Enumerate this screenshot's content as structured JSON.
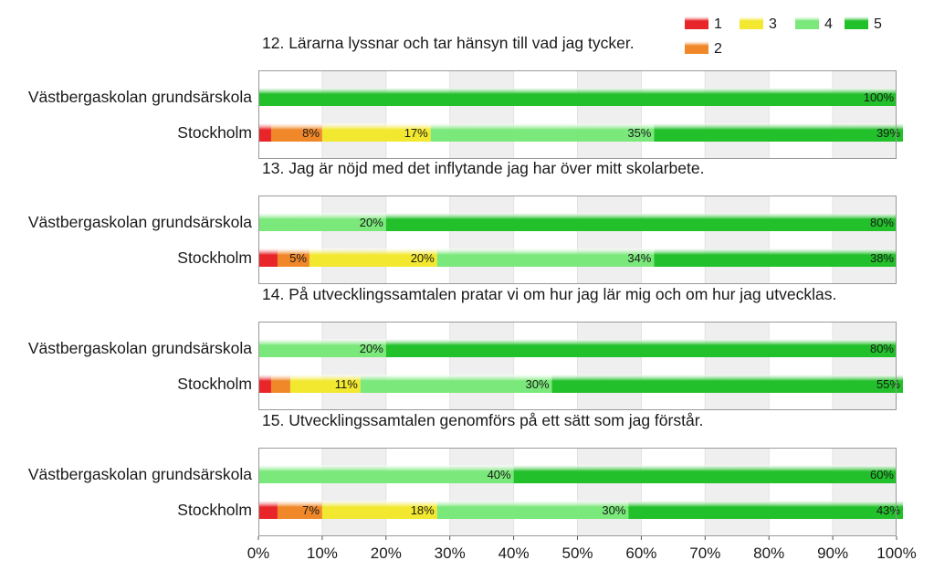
{
  "chart_data": {
    "type": "bar",
    "stacked": true,
    "orientation": "horizontal",
    "xlim": [
      0,
      100
    ],
    "x_ticks": [
      "0%",
      "10%",
      "20%",
      "30%",
      "40%",
      "50%",
      "60%",
      "70%",
      "80%",
      "90%",
      "100%"
    ],
    "legend": {
      "placement": "top-right",
      "entries": [
        "1",
        "2",
        "3",
        "4",
        "5"
      ]
    },
    "colors": {
      "1": "#e8262a",
      "2": "#f0882a",
      "3": "#f2e830",
      "4": "#7ae87a",
      "5": "#22c02a"
    },
    "panels": [
      {
        "title": "12. Lärarna lyssnar och tar hänsyn till vad jag tycker.",
        "rows": [
          {
            "category": "Västbergaskolan grundsärskola",
            "values": [
              0,
              0,
              0,
              0,
              100
            ],
            "labels": [
              "",
              "",
              "",
              "",
              "100%"
            ]
          },
          {
            "category": "Stockholm",
            "values": [
              2,
              8,
              17,
              35,
              39
            ],
            "labels": [
              "",
              "8%",
              "17%",
              "35%",
              "39%"
            ]
          }
        ]
      },
      {
        "title": "13. Jag är nöjd med det inflytande jag har över mitt skolarbete.",
        "rows": [
          {
            "category": "Västbergaskolan grundsärskola",
            "values": [
              0,
              0,
              0,
              20,
              80
            ],
            "labels": [
              "",
              "",
              "",
              "20%",
              "80%"
            ]
          },
          {
            "category": "Stockholm",
            "values": [
              3,
              5,
              20,
              34,
              38
            ],
            "labels": [
              "",
              "5%",
              "20%",
              "34%",
              "38%"
            ]
          }
        ]
      },
      {
        "title": "14. På utvecklingssamtalen pratar vi om hur jag lär mig och om hur jag utvecklas.",
        "rows": [
          {
            "category": "Västbergaskolan grundsärskola",
            "values": [
              0,
              0,
              0,
              20,
              80
            ],
            "labels": [
              "",
              "",
              "",
              "20%",
              "80%"
            ]
          },
          {
            "category": "Stockholm",
            "values": [
              2,
              3,
              11,
              30,
              55
            ],
            "labels": [
              "",
              "",
              "11%",
              "30%",
              "55%"
            ]
          }
        ]
      },
      {
        "title": "15. Utvecklingssamtalen genomförs på ett sätt som jag förstår.",
        "rows": [
          {
            "category": "Västbergaskolan grundsärskola",
            "values": [
              0,
              0,
              0,
              40,
              60
            ],
            "labels": [
              "",
              "",
              "",
              "40%",
              "60%"
            ]
          },
          {
            "category": "Stockholm",
            "values": [
              3,
              7,
              18,
              30,
              43
            ],
            "labels": [
              "",
              "7%",
              "18%",
              "30%",
              "43%"
            ]
          }
        ]
      }
    ]
  }
}
